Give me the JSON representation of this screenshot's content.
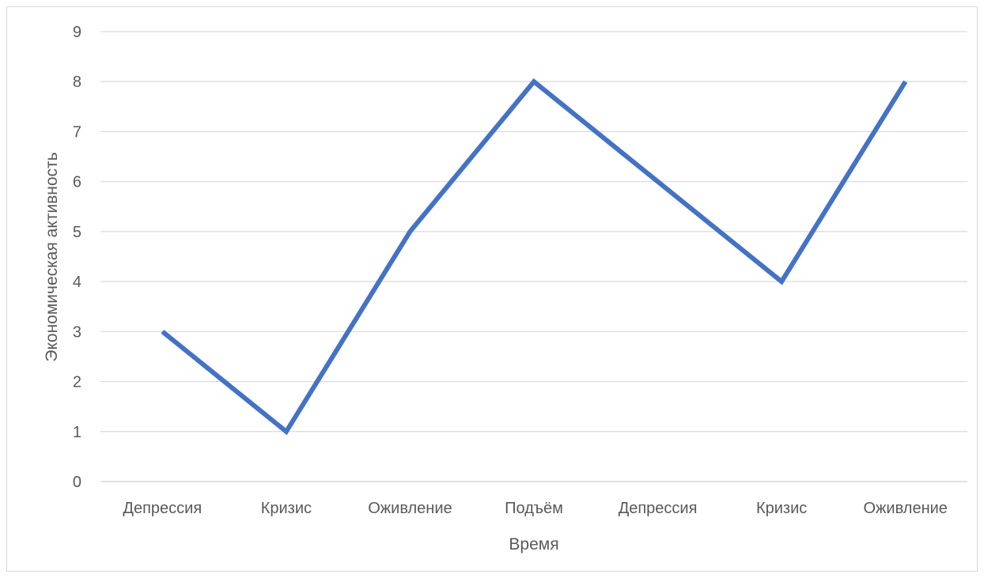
{
  "chart_data": {
    "type": "line",
    "title": "",
    "xlabel": "Время",
    "ylabel": "Экономическая активность",
    "categories": [
      "Депрессия",
      "Кризис",
      "Оживление",
      "Подъём",
      "Депрессия",
      "Кризис",
      "Оживление"
    ],
    "series": [
      {
        "values": [
          3,
          1,
          5,
          8,
          6,
          4,
          8
        ],
        "color": "#4472c4"
      }
    ],
    "ylim": [
      0,
      9
    ],
    "yticks": [
      "0",
      "1",
      "2",
      "3",
      "4",
      "5",
      "6",
      "7",
      "8",
      "9"
    ],
    "grid": true,
    "legend": "none"
  }
}
